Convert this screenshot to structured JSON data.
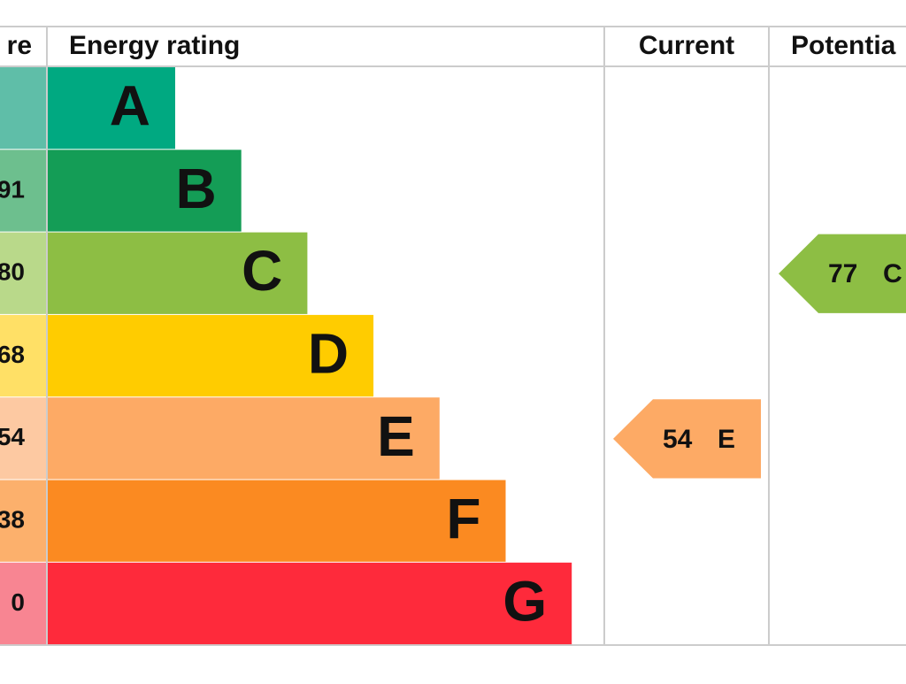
{
  "header": {
    "score": "re",
    "rating": "Energy rating",
    "current": "Current",
    "potential": "Potentia"
  },
  "bands": [
    {
      "score": null,
      "letter": "A",
      "color": "#00a981",
      "light": "#5fbea8"
    },
    {
      "score": "91",
      "letter": "B",
      "color": "#149d56",
      "light": "#6dbf8e"
    },
    {
      "score": "80",
      "letter": "C",
      "color": "#8dbe44",
      "light": "#b9d98a"
    },
    {
      "score": "68",
      "letter": "D",
      "color": "#ffcc00",
      "light": "#ffe066"
    },
    {
      "score": "54",
      "letter": "E",
      "color": "#fdaa65",
      "light": "#fdc9a2"
    },
    {
      "score": "38",
      "letter": "F",
      "color": "#fb8a21",
      "light": "#fcb06c"
    },
    {
      "score": "0",
      "letter": "G",
      "color": "#fe2a3b",
      "light": "#f88592"
    }
  ],
  "current": {
    "value": "54",
    "letter": "E",
    "color": "#fdaa65"
  },
  "potential": {
    "value": "77",
    "letter": "C",
    "color": "#8dbe44"
  }
}
